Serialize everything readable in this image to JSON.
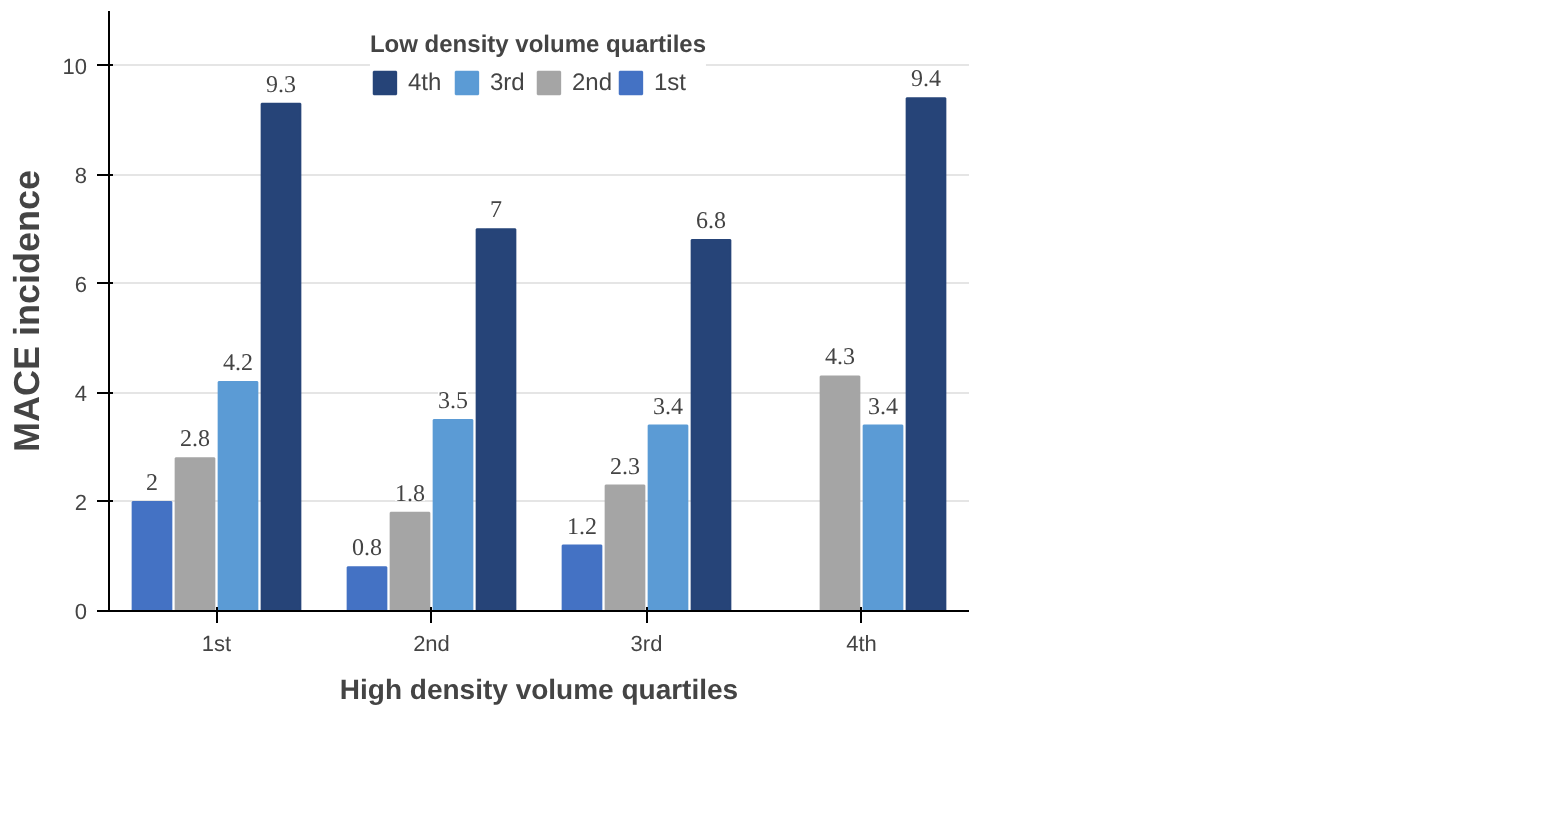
{
  "chart_data": {
    "type": "bar",
    "xlabel": "High density volume quartiles",
    "ylabel": "MACE incidence",
    "legend_title": "Low density volume quartiles",
    "categories": [
      "1st",
      "2nd",
      "3rd",
      "4th"
    ],
    "series": [
      {
        "name": "1st",
        "color": "#4472c4",
        "values": [
          2,
          0.8,
          1.2,
          null
        ]
      },
      {
        "name": "2nd",
        "color": "#a5a5a5",
        "values": [
          2.8,
          1.8,
          2.3,
          4.3
        ]
      },
      {
        "name": "3rd",
        "color": "#5b9bd5",
        "values": [
          4.2,
          3.5,
          3.4,
          3.4
        ]
      },
      {
        "name": "4th",
        "color": "#264478",
        "values": [
          9.3,
          7,
          6.8,
          9.4
        ]
      }
    ],
    "ylim": [
      0,
      11
    ],
    "yticks": [
      0,
      2,
      4,
      6,
      8,
      10
    ],
    "grid": "y",
    "data_labels": true,
    "legend": "top"
  }
}
